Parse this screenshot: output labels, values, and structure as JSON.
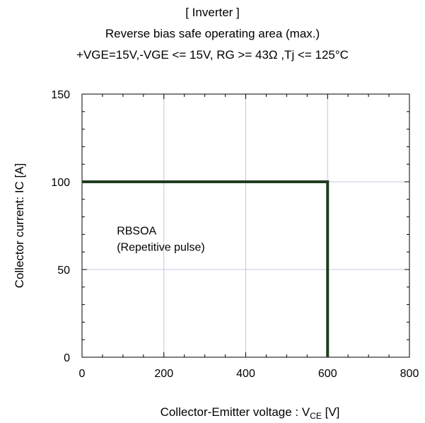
{
  "title": "[ Inverter ]",
  "subtitle": "Reverse bias safe operating area (max.)",
  "conditions": "+VGE=15V,-VGE <= 15V, RG >= 43Ω ,Tj <= 125°C",
  "chart_data": {
    "type": "line",
    "xlabel_main": "Collector-Emitter voltage : V",
    "xlabel_sub": "CE",
    "xlabel_unit": " [V]",
    "ylabel": "Collector current: IC [A]",
    "xlim": [
      0,
      800
    ],
    "ylim": [
      0,
      150
    ],
    "xticks": [
      0,
      200,
      400,
      600,
      800
    ],
    "yticks": [
      0,
      50,
      100,
      150
    ],
    "grid": true,
    "series": [
      {
        "x": [
          0,
          600,
          600
        ],
        "y": [
          100,
          100,
          0
        ],
        "color": "#1f3d1f"
      }
    ],
    "annotation": [
      "RBSOA",
      "(Repetitive pulse)"
    ],
    "annotation_position": [
      85,
      70
    ]
  }
}
